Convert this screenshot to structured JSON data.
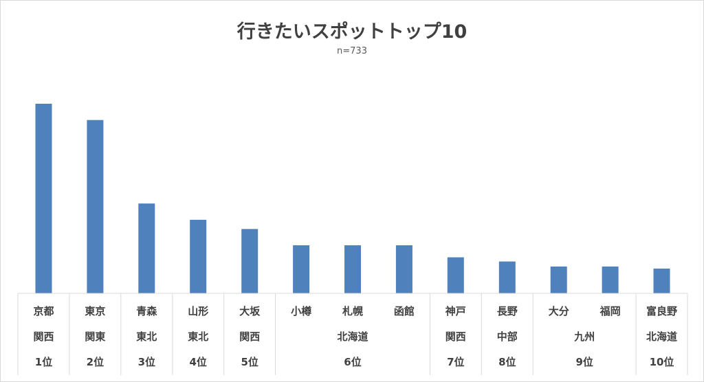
{
  "chart_data": {
    "type": "bar",
    "title": "行きたいスポットトップ10",
    "subtitle": "n=733",
    "categories": [
      "京都",
      "東京",
      "青森",
      "山形",
      "大坂",
      "小樽",
      "札幌",
      "函館",
      "神戸",
      "長野",
      "大分",
      "福岡",
      "富良野"
    ],
    "series": [
      {
        "color": "#4f81bd",
        "values": [
          268,
          245,
          127,
          104,
          91,
          68,
          68,
          68,
          51,
          45,
          38,
          38,
          35
        ]
      }
    ],
    "groups": [
      {
        "region": "関西",
        "rank": "1位",
        "count": 1
      },
      {
        "region": "関東",
        "rank": "2位",
        "count": 1
      },
      {
        "region": "東北",
        "rank": "3位",
        "count": 1
      },
      {
        "region": "東北",
        "rank": "4位",
        "count": 1
      },
      {
        "region": "関西",
        "rank": "5位",
        "count": 1
      },
      {
        "region": "北海道",
        "rank": "6位",
        "count": 3
      },
      {
        "region": "関西",
        "rank": "7位",
        "count": 1
      },
      {
        "region": "中部",
        "rank": "8位",
        "count": 1
      },
      {
        "region": "九州",
        "rank": "9位",
        "count": 2
      },
      {
        "region": "北海道",
        "rank": "10位",
        "count": 1
      }
    ],
    "ylim": [
      0,
      300
    ],
    "grid": false,
    "legend": "none",
    "yaxis_visible": false
  }
}
